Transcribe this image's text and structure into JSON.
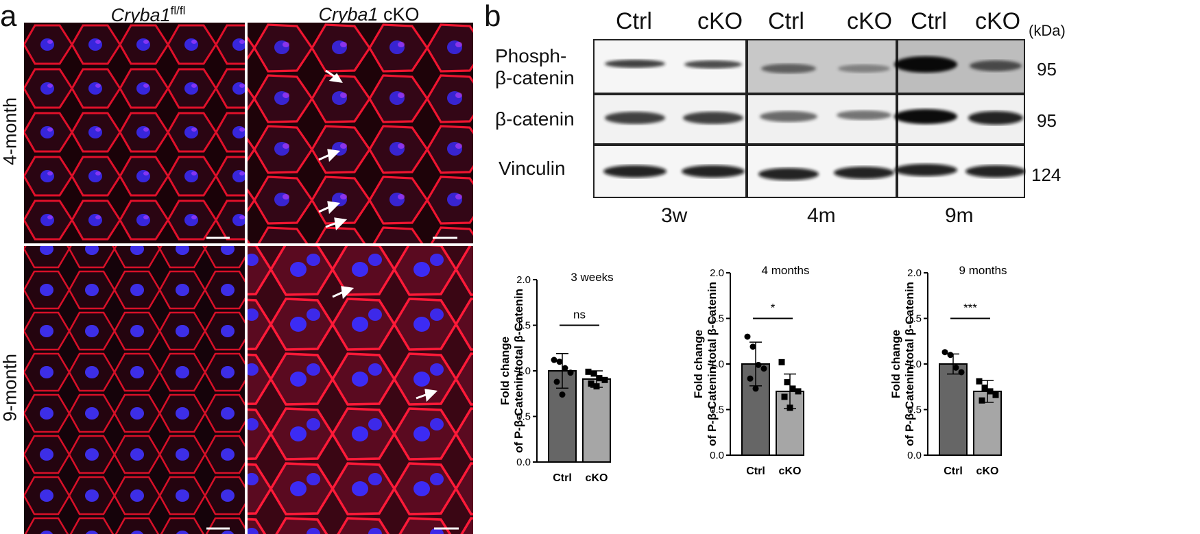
{
  "panel_a": {
    "letter": "a",
    "col_headers": [
      {
        "gene": "Cryba1",
        "sup": "fl/fl",
        "suffix": ""
      },
      {
        "gene": "Cryba1",
        "sup": "",
        "suffix": " cKO"
      }
    ],
    "row_labels": [
      "4-month",
      "9-month"
    ]
  },
  "panel_b": {
    "letter": "b",
    "lane_labels": [
      "Ctrl",
      "cKO",
      "Ctrl",
      "cKO",
      "Ctrl",
      "cKO"
    ],
    "kda_unit": "(kDa)",
    "rows": [
      {
        "label_line1": "Phosph-",
        "label_line2": "β-catenin",
        "kda": "95"
      },
      {
        "label_line1": "β-catenin",
        "label_line2": "",
        "kda": "95"
      },
      {
        "label_line1": "Vinculin",
        "label_line2": "",
        "kda": "124"
      }
    ],
    "timepoints": [
      "3w",
      "4m",
      "9m"
    ]
  },
  "colors": {
    "ctrl_bar": "#666666",
    "cko_bar": "#a6a6a6",
    "membrane": "#e0102a",
    "nucleus": "#3a2cff"
  },
  "chart_data": [
    {
      "type": "bar",
      "title": "3 weeks",
      "ylabel": "Fold change of P-β-Catenin/total β-Catenin",
      "categories": [
        "Ctrl",
        "cKO"
      ],
      "values": [
        1.0,
        0.91
      ],
      "errors": [
        0.19,
        0.09
      ],
      "ylim": [
        0,
        2.0
      ],
      "yticks": [
        "0.0",
        "0.5",
        "1.0",
        "1.5",
        "2.0"
      ],
      "significance": "ns",
      "points": [
        [
          1.12,
          1.1,
          1.03,
          0.98,
          0.88,
          0.74
        ],
        [
          0.99,
          0.97,
          0.92,
          0.9,
          0.86,
          0.83
        ]
      ]
    },
    {
      "type": "bar",
      "title": "4 months",
      "ylabel": "Fold change of P-β-Catenin/total β-Catenin",
      "categories": [
        "Ctrl",
        "cKO"
      ],
      "values": [
        1.0,
        0.7
      ],
      "errors": [
        0.24,
        0.19
      ],
      "ylim": [
        0,
        2.0
      ],
      "yticks": [
        "0.0",
        "0.5",
        "1.0",
        "1.5",
        "2.0"
      ],
      "significance": "*",
      "points": [
        [
          1.3,
          1.19,
          0.99,
          0.95,
          0.84,
          0.73
        ],
        [
          1.02,
          0.8,
          0.73,
          0.7,
          0.64,
          0.52
        ]
      ]
    },
    {
      "type": "bar",
      "title": "9 months",
      "ylabel": "Fold change of P-β-Catenin/total β-Catenin",
      "categories": [
        "Ctrl",
        "cKO"
      ],
      "values": [
        1.0,
        0.7
      ],
      "errors": [
        0.11,
        0.12
      ],
      "ylim": [
        0,
        2.0
      ],
      "yticks": [
        "0.0",
        "0.5",
        "1.0",
        "1.5",
        "2.0"
      ],
      "significance": "***",
      "points": [
        [
          1.13,
          1.1,
          0.96,
          0.91
        ],
        [
          0.81,
          0.74,
          0.7,
          0.66,
          0.6
        ]
      ]
    }
  ]
}
